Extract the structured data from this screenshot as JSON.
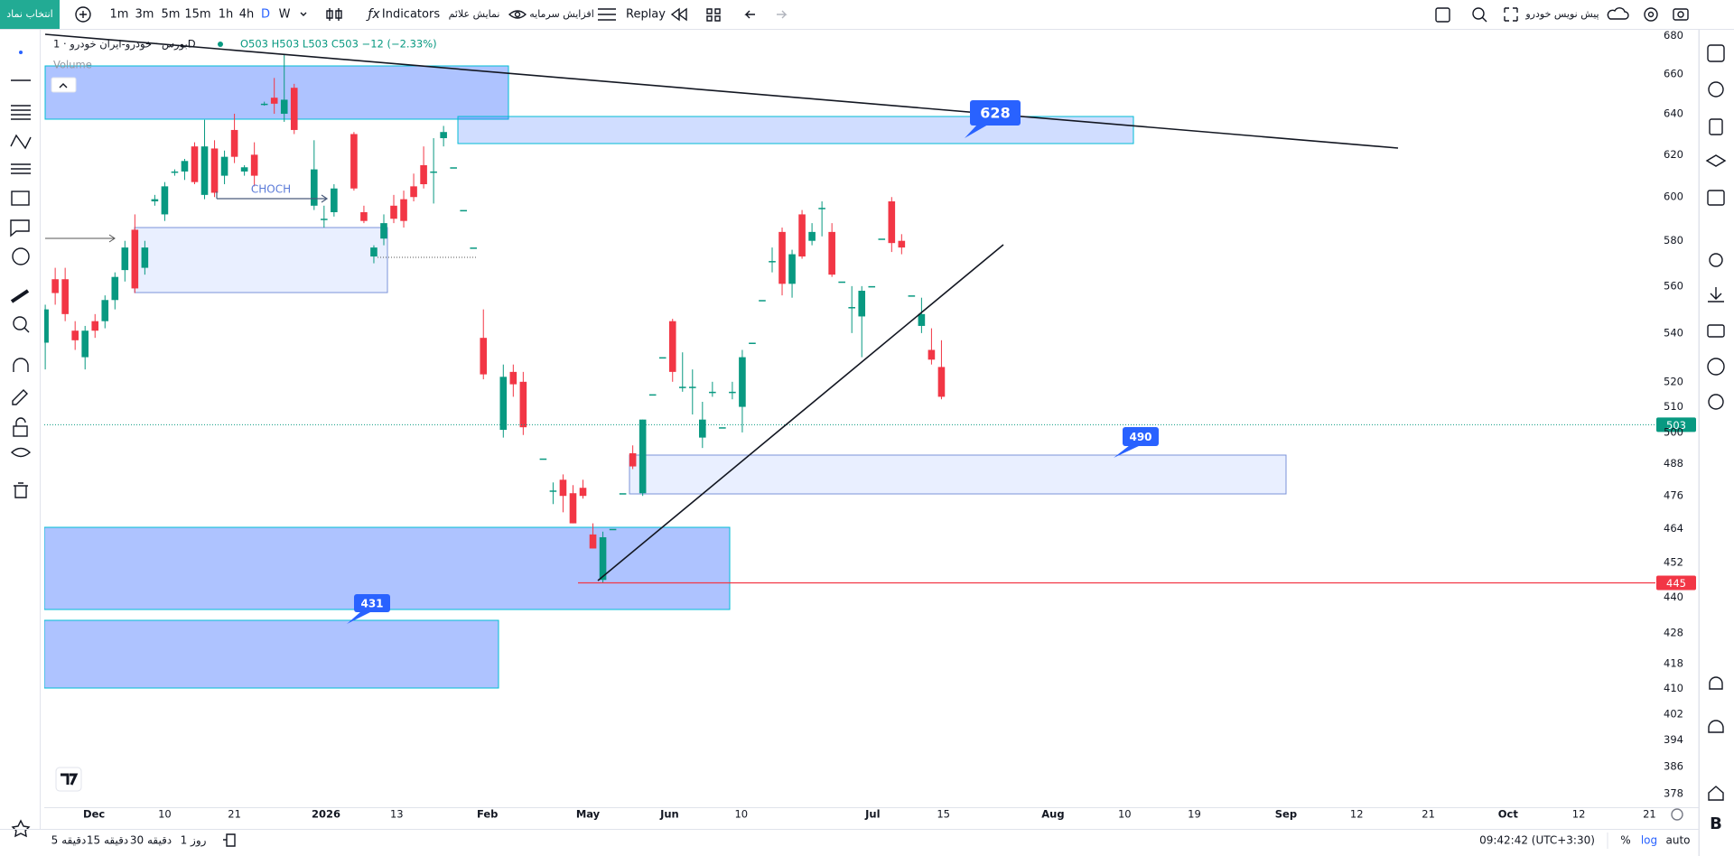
{
  "toolbar": {
    "symbol_button": "انتخاب نماد",
    "intervals": [
      "1m",
      "3m",
      "5m",
      "15m",
      "1h",
      "4h",
      "D",
      "W"
    ],
    "active_interval": "D",
    "indicators": "Indicators",
    "show_signals": "نمایش علائم",
    "capital_increase": "افزایش سرمایه",
    "replay": "Replay",
    "draft": "پیش نویس خودرو"
  },
  "legend": {
    "symbol": "بورس · خودرو-ایران خودرو · 1D",
    "ohlc": "O503 H503 L503 C503 −12 (−2.33%)",
    "volume": "Volume"
  },
  "chart_data": {
    "type": "candlestick",
    "x": [
      0,
      1,
      2,
      3,
      4,
      5,
      6,
      7,
      8,
      9,
      10,
      11,
      12,
      13,
      14,
      15,
      16,
      17,
      18,
      19,
      20,
      21,
      22,
      23,
      24,
      25,
      27,
      28,
      29,
      31,
      32,
      33,
      34,
      35,
      36,
      37,
      38,
      39,
      40,
      41,
      42,
      43,
      44,
      46,
      47,
      48,
      50,
      51,
      52,
      53,
      54,
      55,
      56,
      57,
      58,
      59,
      60,
      61,
      62,
      63,
      64,
      65,
      66,
      67,
      68,
      69,
      70,
      71,
      72,
      73,
      74,
      75,
      76,
      77,
      78,
      79,
      80,
      81,
      82,
      83,
      84,
      85,
      86,
      87,
      88,
      89,
      90
    ],
    "open": [
      536,
      563,
      563,
      541,
      530,
      545,
      545,
      554,
      567,
      585,
      568,
      598,
      592,
      612,
      612,
      624,
      601,
      623,
      610,
      632,
      612,
      620,
      645,
      648,
      640,
      653,
      596,
      590,
      593,
      630,
      593,
      573,
      581,
      596,
      599,
      605,
      615,
      612,
      628,
      614,
      594,
      577,
      538,
      501,
      524,
      520,
      490,
      478,
      482,
      477,
      479,
      462,
      446,
      464,
      477,
      492,
      477,
      515,
      530,
      545,
      518,
      518,
      498,
      516,
      502,
      516,
      510,
      536,
      554,
      571,
      584,
      561,
      592,
      580,
      595,
      584,
      562,
      551,
      547,
      560,
      581,
      598,
      580,
      556,
      543,
      533,
      526
    ],
    "high": [
      552,
      568,
      568,
      545,
      543,
      548,
      556,
      566,
      580,
      592,
      580,
      601,
      607,
      613,
      618,
      626,
      637,
      627,
      622,
      640,
      615,
      626,
      646,
      658,
      670,
      655,
      627,
      596,
      606,
      631,
      596,
      578,
      592,
      601,
      603,
      611,
      624,
      628,
      634,
      614,
      594,
      577,
      550,
      527,
      527,
      524,
      490,
      481,
      484,
      480,
      482,
      466,
      463,
      464,
      477,
      495,
      505,
      515,
      530,
      546,
      532,
      525,
      512,
      520,
      502,
      520,
      533,
      536,
      554,
      577,
      586,
      576,
      594,
      588,
      598,
      588,
      562,
      560,
      560,
      560,
      581,
      600,
      583,
      556,
      555,
      542,
      537
    ],
    "low": [
      525,
      552,
      545,
      533,
      525,
      538,
      542,
      550,
      562,
      557,
      565,
      596,
      589,
      610,
      608,
      606,
      599,
      600,
      606,
      616,
      610,
      605,
      644,
      640,
      636,
      630,
      594,
      586,
      591,
      603,
      588,
      570,
      578,
      588,
      586,
      598,
      604,
      597,
      624,
      614,
      594,
      577,
      521,
      498,
      514,
      499,
      490,
      473,
      470,
      466,
      475,
      457,
      445,
      464,
      477,
      486,
      476,
      515,
      530,
      520,
      516,
      507,
      494,
      514,
      502,
      513,
      500,
      536,
      554,
      566,
      556,
      555,
      572,
      578,
      582,
      564,
      562,
      540,
      530,
      560,
      581,
      575,
      574,
      556,
      540,
      527,
      513
    ],
    "close": [
      550,
      557,
      548,
      537,
      541,
      541,
      554,
      564,
      577,
      559,
      577,
      599,
      605,
      612,
      617,
      607,
      624,
      602,
      619,
      619,
      614,
      610,
      645,
      645,
      647,
      632,
      613,
      590,
      604,
      604,
      589,
      577,
      588,
      590,
      589,
      600,
      606,
      612,
      631,
      614,
      594,
      577,
      523,
      522,
      519,
      502,
      490,
      478,
      476,
      466,
      476,
      457,
      461,
      464,
      477,
      487,
      505,
      515,
      530,
      524,
      518,
      518,
      505,
      516,
      502,
      516,
      530,
      536,
      554,
      571,
      561,
      574,
      573,
      584,
      595,
      565,
      562,
      551,
      558,
      560,
      581,
      579,
      577,
      556,
      548,
      529,
      514
    ],
    "up_color": "#089981",
    "down_color": "#f23645",
    "log_scale": true,
    "ylim": [
      374,
      683
    ],
    "yticks": [
      680,
      660,
      640,
      620,
      600,
      580,
      560,
      540,
      520,
      510,
      500,
      488,
      476,
      464,
      452,
      440,
      428,
      418,
      410,
      402,
      394,
      386,
      378
    ],
    "xlim": [
      -0.1,
      161.7
    ],
    "xticks": [
      {
        "value": 4.9,
        "label": "Dec"
      },
      {
        "value": 12.0,
        "label": "10"
      },
      {
        "value": 19.0,
        "label": "21"
      },
      {
        "value": 28.2,
        "label": "2026"
      },
      {
        "value": 35.3,
        "label": "13"
      },
      {
        "value": 44.4,
        "label": "Feb"
      },
      {
        "value": 54.5,
        "label": "May"
      },
      {
        "value": 62.7,
        "label": "Jun"
      },
      {
        "value": 69.9,
        "label": "10"
      },
      {
        "value": 83.1,
        "label": "Jul"
      },
      {
        "value": 90.2,
        "label": "15"
      },
      {
        "value": 101.2,
        "label": "Aug"
      },
      {
        "value": 108.4,
        "label": "10"
      },
      {
        "value": 115.4,
        "label": "19"
      },
      {
        "value": 124.6,
        "label": "Sep"
      },
      {
        "value": 131.7,
        "label": "12"
      },
      {
        "value": 138.9,
        "label": "21"
      },
      {
        "value": 146.9,
        "label": "Oct"
      },
      {
        "value": 154.0,
        "label": "12"
      },
      {
        "value": 161.1,
        "label": "21"
      }
    ],
    "last_price": 503,
    "last_price_color": "#089981",
    "level": 445,
    "level_color": "#f23645",
    "annotations": [
      628,
      490,
      431
    ],
    "choch": "CHOCH"
  },
  "bottom_bar": {
    "ranges": [
      "دقیقه 5",
      "دقیقه 15",
      "دقیقه 30",
      "روز 1"
    ],
    "clock": "09:42:42 (UTC+3:30)",
    "percent": "%",
    "log": "log",
    "auto": "auto"
  }
}
